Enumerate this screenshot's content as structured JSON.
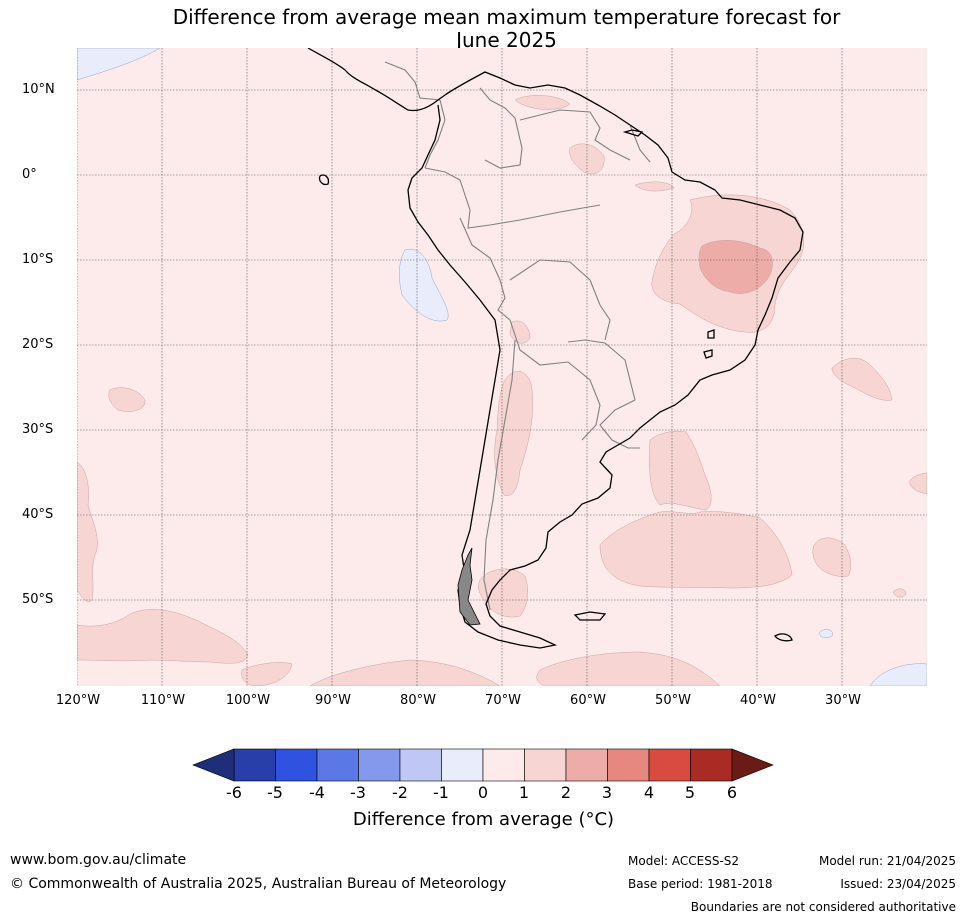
{
  "title_line1": "Difference from average mean maximum temperature forecast for",
  "title_line2": "June 2025",
  "lat_labels": [
    "10°N",
    "0°",
    "10°S",
    "20°S",
    "30°S",
    "40°S",
    "50°S"
  ],
  "lon_labels": [
    "120°W",
    "110°W",
    "100°W",
    "90°W",
    "80°W",
    "70°W",
    "60°W",
    "50°W",
    "40°W",
    "30°W"
  ],
  "colorbar": {
    "label": "Difference from average (°C)",
    "ticks": [
      "-6",
      "-5",
      "-4",
      "-3",
      "-2",
      "-1",
      "0",
      "1",
      "2",
      "3",
      "4",
      "5",
      "6"
    ],
    "colors": [
      "#283ea8",
      "#2f52e0",
      "#5c77e6",
      "#8599ec",
      "#bfc8f4",
      "#e8ecfb",
      "#fcebea",
      "#f7d5d3",
      "#eeaca9",
      "#e8877f",
      "#d94b40",
      "#a92b23"
    ],
    "under_color": "#1f2e79",
    "over_color": "#6b1b15"
  },
  "map_colors": {
    "background": "#fcebea",
    "band_1_2": "#f7d5d3",
    "band_2_3": "#eeaca9",
    "band_neg1_0": "#e8ecfb",
    "coast": "#000000",
    "border": "#808080"
  },
  "footer": {
    "website": "www.bom.gov.au/climate",
    "copyright": "© Commonwealth of Australia 2025, Australian Bureau of Meteorology",
    "model": "Model: ACCESS-S2",
    "base_period": "Base period: 1981-2018",
    "model_run": "Model run: 21/04/2025",
    "issued": "Issued: 23/04/2025",
    "disclaimer": "Boundaries are not considered authoritative"
  }
}
